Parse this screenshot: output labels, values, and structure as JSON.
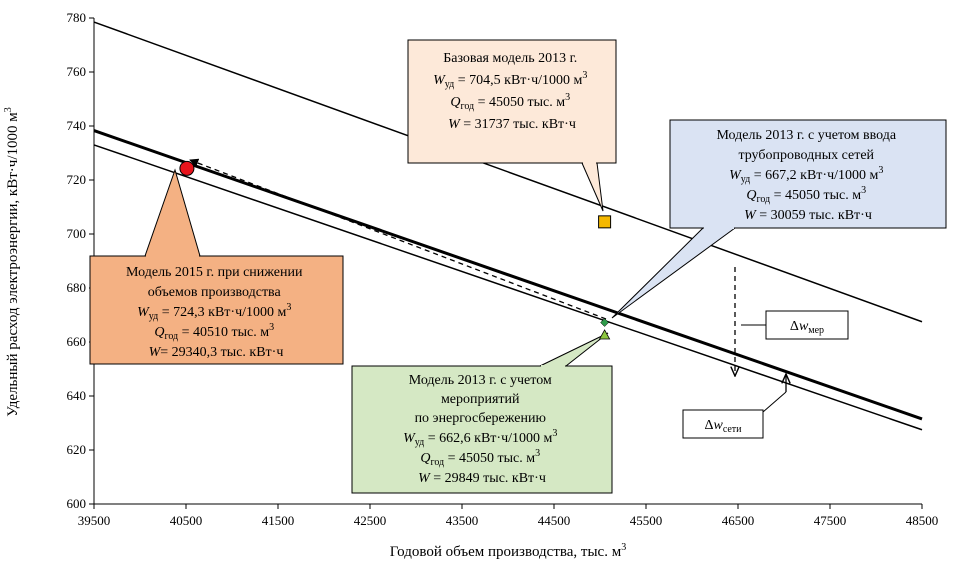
{
  "chart_data": {
    "type": "line",
    "xlabel": "Годовой объем производства, тыс. м",
    "xlabel_sup": "3",
    "ylabel": "Удельный расход электроэнергии, кВт·ч/1000 м",
    "ylabel_sup": "3",
    "xlim": [
      39500,
      48500
    ],
    "ylim": [
      600,
      780
    ],
    "x_ticks": [
      "39500",
      "40500",
      "41500",
      "42500",
      "43500",
      "44500",
      "45500",
      "46500",
      "47500",
      "48500"
    ],
    "y_ticks": [
      "600",
      "620",
      "640",
      "660",
      "680",
      "700",
      "720",
      "740",
      "760",
      "780"
    ],
    "grid": false,
    "series": [
      {
        "x": [
          39500,
          48500
        ],
        "y": [
          778.5,
          667.5
        ],
        "color": "#000000"
      },
      {
        "x": [
          39500,
          48500
        ],
        "y": [
          738.3,
          631.5
        ],
        "color": "#000000"
      },
      {
        "x": [
          39500,
          48500
        ],
        "y": [
          733.0,
          627.5
        ],
        "color": "#000000"
      }
    ],
    "points": [
      {
        "x": 45050,
        "y": 704.5,
        "shape": "square",
        "color": "#f5b800"
      },
      {
        "x": 40510,
        "y": 724.3,
        "shape": "circle",
        "color": "#e8141c"
      },
      {
        "x": 45050,
        "y": 667.2,
        "shape": "diamond",
        "color": "#2e9a4a"
      },
      {
        "x": 45050,
        "y": 662.6,
        "shape": "triangle",
        "color": "#8cc63f"
      }
    ]
  },
  "callouts": {
    "base": {
      "bg": "#fde9d9",
      "line1": "Базовая модель 2013 г.",
      "w_sym": "W",
      "w_sub": "уд",
      "w_val": " = 704,5 кВт·ч/1000 м",
      "w_sup": "3",
      "q_sym": "Q",
      "q_sub": "год",
      "q_val": " = 45050 тыс. м",
      "q_sup": "3",
      "e_sym": "W",
      "e_val": " = 31737 тыс. кВт·ч"
    },
    "pipe": {
      "bg": "#dae3f3",
      "line1": "Модель 2013 г. с учетом ввода",
      "line2": "трубопроводных сетей",
      "w_sym": "W",
      "w_sub": "уд",
      "w_val": " = 667,2 кВт·ч/1000 м",
      "w_sup": "3",
      "q_sym": "Q",
      "q_sub": "год",
      "q_val": " = 45050 тыс. м",
      "q_sup": "3",
      "e_sym": "W",
      "e_val": " = 30059 тыс. кВт·ч"
    },
    "m2015": {
      "bg": "#f4b183",
      "line1": "Модель 2015 г. при снижении",
      "line2": "объемов производства",
      "w_sym": "W",
      "w_sub": "уд",
      "w_val": " = 724,3 кВт·ч/1000 м",
      "w_sup": "3",
      "q_sym": "Q",
      "q_sub": "год",
      "q_val": " = 40510 тыс. м",
      "q_sup": "3",
      "e_sym": "W",
      "e_val": "= 29340,3 тыс. кВт·ч"
    },
    "energy": {
      "bg": "#d5e8c4",
      "line1": "Модель 2013 г. с учетом",
      "line2": "мероприятий",
      "line3": "по энергосбережению",
      "w_sym": "W",
      "w_sub": "уд",
      "w_val": " = 662,6 кВт·ч/1000 м",
      "w_sup": "3",
      "q_sym": "Q",
      "q_sub": "год",
      "q_val": " = 45050 тыс. м",
      "q_sup": "3",
      "e_sym": "W",
      "e_val": " = 29849 тыс. кВт·ч"
    }
  },
  "deltas": {
    "mer": {
      "delta": "Δ",
      "sym": "w",
      "sub": "мер"
    },
    "seti": {
      "delta": "Δ",
      "sym": "w",
      "sub": "сети"
    }
  }
}
